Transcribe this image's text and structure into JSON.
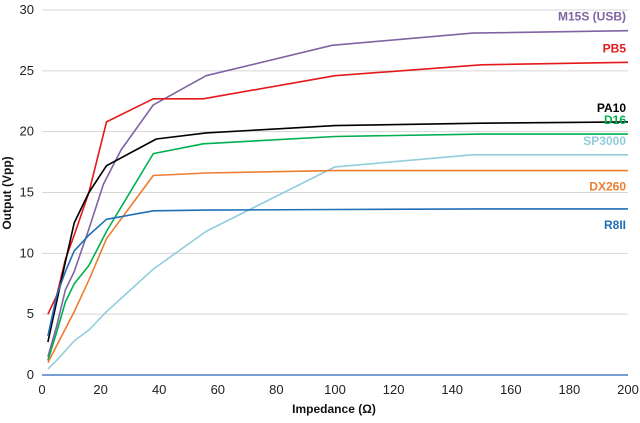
{
  "chart_data": {
    "type": "line",
    "xlabel": "Impedance (Ω)",
    "ylabel": "Output (Vpp)",
    "xlim": [
      0,
      200
    ],
    "ylim": [
      0,
      30
    ],
    "xticks": [
      0,
      20,
      40,
      60,
      80,
      100,
      120,
      140,
      160,
      180,
      200
    ],
    "yticks": [
      0,
      5,
      10,
      15,
      20,
      25,
      30
    ],
    "grid": "horizontal",
    "legend": "inline-right",
    "series": [
      {
        "name": "M15S (USB)",
        "color": "#8064A2",
        "points": [
          [
            2,
            1.5
          ],
          [
            5,
            4
          ],
          [
            8,
            7
          ],
          [
            11,
            8.5
          ],
          [
            16,
            12
          ],
          [
            21,
            15.7
          ],
          [
            27,
            18.5
          ],
          [
            38,
            22.2
          ],
          [
            56,
            24.6
          ],
          [
            99,
            27.1
          ],
          [
            147,
            28.1
          ],
          [
            200,
            28.3
          ]
        ]
      },
      {
        "name": "PB5",
        "color": "#E3191B",
        "points": [
          [
            2,
            5
          ],
          [
            5,
            6.5
          ],
          [
            8,
            9.5
          ],
          [
            11,
            11.5
          ],
          [
            16,
            15
          ],
          [
            22,
            20.8
          ],
          [
            38,
            22.7
          ],
          [
            55,
            22.7
          ],
          [
            100,
            24.6
          ],
          [
            150,
            25.5
          ],
          [
            200,
            25.7
          ]
        ]
      },
      {
        "name": "PA10",
        "color": "#000000",
        "points": [
          [
            2,
            2.7
          ],
          [
            5,
            6
          ],
          [
            8,
            9.3
          ],
          [
            11,
            12.5
          ],
          [
            16,
            15
          ],
          [
            22,
            17.2
          ],
          [
            39,
            19.4
          ],
          [
            56,
            19.9
          ],
          [
            100,
            20.5
          ],
          [
            150,
            20.7
          ],
          [
            200,
            20.8
          ]
        ]
      },
      {
        "name": "D16",
        "color": "#00B050",
        "points": [
          [
            2,
            1.2
          ],
          [
            5,
            3.5
          ],
          [
            8,
            6
          ],
          [
            11,
            7.5
          ],
          [
            16,
            9
          ],
          [
            22,
            11.8
          ],
          [
            38,
            18.2
          ],
          [
            55,
            19
          ],
          [
            100,
            19.6
          ],
          [
            150,
            19.8
          ],
          [
            200,
            19.8
          ]
        ]
      },
      {
        "name": "SP3000",
        "color": "#92CDDC",
        "points": [
          [
            2,
            0.5
          ],
          [
            5,
            1.2
          ],
          [
            8,
            2
          ],
          [
            11,
            2.8
          ],
          [
            16,
            3.7
          ],
          [
            22,
            5.2
          ],
          [
            38,
            8.7
          ],
          [
            56,
            11.8
          ],
          [
            100,
            17.1
          ],
          [
            147,
            18.1
          ],
          [
            200,
            18.1
          ]
        ]
      },
      {
        "name": "DX260",
        "color": "#ED7D31",
        "points": [
          [
            2,
            1
          ],
          [
            5,
            2.4
          ],
          [
            8,
            3.8
          ],
          [
            11,
            5.2
          ],
          [
            16,
            7.8
          ],
          [
            22,
            11.2
          ],
          [
            38,
            16.4
          ],
          [
            56,
            16.6
          ],
          [
            100,
            16.8
          ],
          [
            150,
            16.8
          ],
          [
            200,
            16.8
          ]
        ]
      },
      {
        "name": "R8II",
        "color": "#1F6FB5",
        "points": [
          [
            2,
            3.2
          ],
          [
            5,
            6.5
          ],
          [
            8,
            8.5
          ],
          [
            11,
            10.2
          ],
          [
            16,
            11.5
          ],
          [
            22,
            12.8
          ],
          [
            38,
            13.5
          ],
          [
            56,
            13.55
          ],
          [
            100,
            13.6
          ],
          [
            150,
            13.65
          ],
          [
            200,
            13.65
          ]
        ]
      },
      {
        "name": "",
        "color": "#4A7FC1",
        "points": [
          [
            0,
            0
          ],
          [
            200,
            0
          ]
        ]
      }
    ]
  }
}
